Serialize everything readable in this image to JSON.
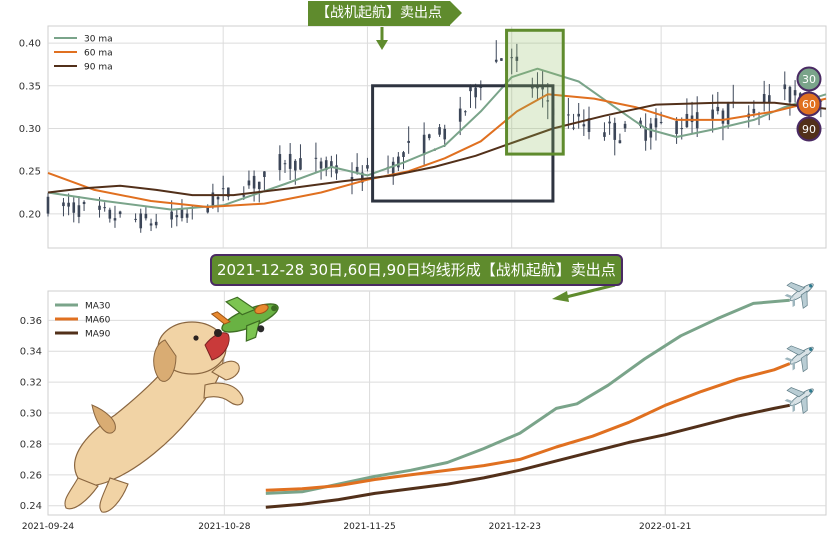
{
  "banners": {
    "top": "【战机起航】卖出点",
    "mid": "2021-12-28 30日,60日,90日均线形成【战机起航】卖出点"
  },
  "colors": {
    "ma30": "#7aa48a",
    "ma60": "#e07020",
    "ma90": "#52301a",
    "candle": "#3c4658",
    "box_dark": "#2e3440",
    "box_green": "#5f8b2d",
    "grid": "#dcdcdc",
    "badge_ma30": "#7aa48a",
    "badge_ma60": "#e07020",
    "badge_ma90": "#52301a",
    "badge_ring": "#4a2a63"
  },
  "icons": {
    "top_arrow": "down-arrow-icon",
    "mid_arrow": "left-arrow-icon",
    "puppy": "puppy-illustration",
    "toy_plane": "green-toy-plane-icon",
    "airplanes": "airplane-icon"
  },
  "chart_data": [
    {
      "type": "candlestick",
      "title": "",
      "legend": {
        "entries": [
          "30 ma",
          "60 ma",
          "90 ma"
        ],
        "placement": "top-left"
      },
      "ylim": [
        0.16,
        0.42
      ],
      "yticks": [
        "0.20",
        "0.25",
        "0.30",
        "0.35",
        "0.40"
      ],
      "ytick_values": [
        0.2,
        0.25,
        0.3,
        0.35,
        0.4
      ],
      "grid": true,
      "x": {
        "start": "2021-09-24",
        "end": "2022-02-22",
        "unit": "date"
      },
      "price_trend": [
        {
          "date": "2021-09-24",
          "close": 0.211
        },
        {
          "date": "2021-10-01",
          "close": 0.205
        },
        {
          "date": "2021-10-08",
          "close": 0.195
        },
        {
          "date": "2021-10-15",
          "close": 0.19
        },
        {
          "date": "2021-10-22",
          "close": 0.2
        },
        {
          "date": "2021-10-29",
          "close": 0.225
        },
        {
          "date": "2021-11-05",
          "close": 0.24
        },
        {
          "date": "2021-11-09",
          "close": 0.265
        },
        {
          "date": "2021-11-16",
          "close": 0.255
        },
        {
          "date": "2021-11-24",
          "close": 0.245
        },
        {
          "date": "2021-11-30",
          "close": 0.255
        },
        {
          "date": "2021-12-03",
          "close": 0.275
        },
        {
          "date": "2021-12-08",
          "close": 0.285
        },
        {
          "date": "2021-12-13",
          "close": 0.31
        },
        {
          "date": "2021-12-17",
          "close": 0.36
        },
        {
          "date": "2021-12-21",
          "close": 0.385
        },
        {
          "date": "2021-12-24",
          "close": 0.37
        },
        {
          "date": "2021-12-28",
          "close": 0.345
        },
        {
          "date": "2022-01-03",
          "close": 0.31
        },
        {
          "date": "2022-01-08",
          "close": 0.3
        },
        {
          "date": "2022-01-14",
          "close": 0.295
        },
        {
          "date": "2022-01-20",
          "close": 0.3
        },
        {
          "date": "2022-01-27",
          "close": 0.31
        },
        {
          "date": "2022-02-02",
          "close": 0.315
        },
        {
          "date": "2022-02-09",
          "close": 0.33
        },
        {
          "date": "2022-02-15",
          "close": 0.34
        },
        {
          "date": "2022-02-22",
          "close": 0.345
        }
      ],
      "series": [
        {
          "name": "30 ma",
          "points": [
            [
              "2021-09-24",
              0.225
            ],
            [
              "2021-10-05",
              0.215
            ],
            [
              "2021-10-18",
              0.205
            ],
            [
              "2021-10-28",
              0.21
            ],
            [
              "2021-11-09",
              0.235
            ],
            [
              "2021-11-18",
              0.255
            ],
            [
              "2021-11-25",
              0.245
            ],
            [
              "2021-12-02",
              0.26
            ],
            [
              "2021-12-10",
              0.28
            ],
            [
              "2021-12-17",
              0.32
            ],
            [
              "2021-12-23",
              0.36
            ],
            [
              "2021-12-28",
              0.37
            ],
            [
              "2022-01-05",
              0.355
            ],
            [
              "2022-01-12",
              0.325
            ],
            [
              "2022-01-18",
              0.3
            ],
            [
              "2022-01-24",
              0.29
            ],
            [
              "2022-02-01",
              0.3
            ],
            [
              "2022-02-08",
              0.31
            ],
            [
              "2022-02-14",
              0.325
            ],
            [
              "2022-02-22",
              0.34
            ]
          ]
        },
        {
          "name": "60 ma",
          "points": [
            [
              "2021-09-24",
              0.248
            ],
            [
              "2021-10-03",
              0.228
            ],
            [
              "2021-10-14",
              0.215
            ],
            [
              "2021-10-25",
              0.208
            ],
            [
              "2021-11-05",
              0.212
            ],
            [
              "2021-11-16",
              0.225
            ],
            [
              "2021-11-25",
              0.24
            ],
            [
              "2021-12-03",
              0.25
            ],
            [
              "2021-12-10",
              0.265
            ],
            [
              "2021-12-17",
              0.285
            ],
            [
              "2021-12-24",
              0.32
            ],
            [
              "2021-12-30",
              0.34
            ],
            [
              "2022-01-08",
              0.335
            ],
            [
              "2022-01-16",
              0.325
            ],
            [
              "2022-01-24",
              0.31
            ],
            [
              "2022-02-02",
              0.31
            ],
            [
              "2022-02-12",
              0.32
            ],
            [
              "2022-02-22",
              0.335
            ]
          ]
        },
        {
          "name": "90 ma",
          "points": [
            [
              "2021-09-24",
              0.225
            ],
            [
              "2021-10-01",
              0.23
            ],
            [
              "2021-10-08",
              0.233
            ],
            [
              "2021-10-15",
              0.228
            ],
            [
              "2021-10-22",
              0.222
            ],
            [
              "2021-10-30",
              0.222
            ],
            [
              "2021-11-10",
              0.23
            ],
            [
              "2021-11-20",
              0.238
            ],
            [
              "2021-11-30",
              0.245
            ],
            [
              "2021-12-08",
              0.255
            ],
            [
              "2021-12-16",
              0.268
            ],
            [
              "2021-12-23",
              0.283
            ],
            [
              "2021-12-31",
              0.3
            ],
            [
              "2022-01-10",
              0.315
            ],
            [
              "2022-01-20",
              0.328
            ],
            [
              "2022-02-01",
              0.33
            ],
            [
              "2022-02-12",
              0.33
            ],
            [
              "2022-02-22",
              0.323
            ]
          ]
        }
      ],
      "end_badges": [
        "30",
        "60",
        "90"
      ],
      "annotations": [
        {
          "type": "box",
          "style": "dark",
          "x": [
            "2021-11-26",
            "2021-12-31"
          ],
          "y": [
            0.215,
            0.35
          ]
        },
        {
          "type": "box",
          "style": "green",
          "x": [
            "2021-12-22",
            "2022-01-02"
          ],
          "y": [
            0.27,
            0.415
          ]
        }
      ]
    },
    {
      "type": "line",
      "title": "",
      "legend": {
        "entries": [
          "MA30",
          "MA60",
          "MA90"
        ],
        "placement": "top-left"
      },
      "ylim": [
        0.234,
        0.379
      ],
      "yticks": [
        "0.24",
        "0.26",
        "0.28",
        "0.30",
        "0.32",
        "0.34",
        "0.36"
      ],
      "ytick_values": [
        0.24,
        0.26,
        0.28,
        0.3,
        0.32,
        0.34,
        0.36
      ],
      "xticks": [
        "2021-09-24",
        "2021-10-28",
        "2021-11-25",
        "2021-12-23",
        "2022-01-21"
      ],
      "xlim": [
        "2021-09-24",
        "2022-02-21"
      ],
      "grid": true,
      "series": [
        {
          "name": "MA30",
          "points": [
            [
              "2021-11-05",
              0.248
            ],
            [
              "2021-11-12",
              0.249
            ],
            [
              "2021-11-19",
              0.254
            ],
            [
              "2021-11-26",
              0.259
            ],
            [
              "2021-12-03",
              0.263
            ],
            [
              "2021-12-10",
              0.268
            ],
            [
              "2021-12-17",
              0.277
            ],
            [
              "2021-12-24",
              0.287
            ],
            [
              "2021-12-31",
              0.303
            ],
            [
              "2022-01-04",
              0.306
            ],
            [
              "2022-01-10",
              0.318
            ],
            [
              "2022-01-17",
              0.335
            ],
            [
              "2022-01-24",
              0.35
            ],
            [
              "2022-01-31",
              0.361
            ],
            [
              "2022-02-07",
              0.371
            ],
            [
              "2022-02-14",
              0.373
            ]
          ]
        },
        {
          "name": "MA60",
          "points": [
            [
              "2021-11-05",
              0.25
            ],
            [
              "2021-11-12",
              0.251
            ],
            [
              "2021-11-19",
              0.253
            ],
            [
              "2021-11-26",
              0.257
            ],
            [
              "2021-12-03",
              0.26
            ],
            [
              "2021-12-10",
              0.263
            ],
            [
              "2021-12-17",
              0.266
            ],
            [
              "2021-12-24",
              0.27
            ],
            [
              "2021-12-31",
              0.278
            ],
            [
              "2022-01-07",
              0.285
            ],
            [
              "2022-01-14",
              0.294
            ],
            [
              "2022-01-21",
              0.305
            ],
            [
              "2022-01-28",
              0.314
            ],
            [
              "2022-02-04",
              0.322
            ],
            [
              "2022-02-11",
              0.328
            ],
            [
              "2022-02-14",
              0.332
            ]
          ]
        },
        {
          "name": "MA90",
          "points": [
            [
              "2021-11-05",
              0.239
            ],
            [
              "2021-11-12",
              0.241
            ],
            [
              "2021-11-19",
              0.244
            ],
            [
              "2021-11-26",
              0.248
            ],
            [
              "2021-12-03",
              0.251
            ],
            [
              "2021-12-10",
              0.254
            ],
            [
              "2021-12-17",
              0.258
            ],
            [
              "2021-12-24",
              0.263
            ],
            [
              "2021-12-31",
              0.269
            ],
            [
              "2022-01-07",
              0.275
            ],
            [
              "2022-01-14",
              0.281
            ],
            [
              "2022-01-21",
              0.286
            ],
            [
              "2022-01-28",
              0.292
            ],
            [
              "2022-02-04",
              0.298
            ],
            [
              "2022-02-11",
              0.303
            ],
            [
              "2022-02-14",
              0.305
            ]
          ]
        }
      ]
    }
  ]
}
